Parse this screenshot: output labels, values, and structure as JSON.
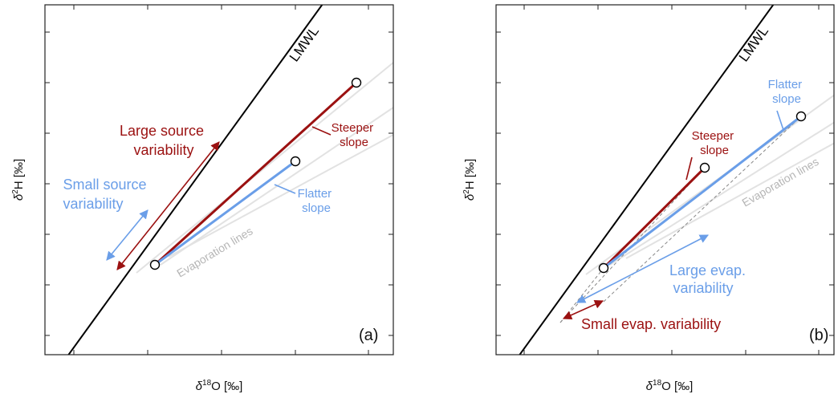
{
  "panel_a": {
    "tag": "(a)",
    "lmwl_label": "LMWL",
    "evap_label": "Evaporation lines",
    "steeper_label": [
      "Steeper",
      "slope"
    ],
    "flatter_label": [
      "Flatter",
      "slope"
    ],
    "large_source_label": [
      "Large source",
      "variability"
    ],
    "small_source_label": [
      "Small source",
      "variability"
    ]
  },
  "panel_b": {
    "tag": "(b)",
    "lmwl_label": "LMWL",
    "evap_label": "Evaporation lines",
    "steeper_label": [
      "Steeper",
      "slope"
    ],
    "flatter_label": [
      "Flatter",
      "slope"
    ],
    "large_evap_label": [
      "Large evap.",
      "variability"
    ],
    "small_evap_label": "Small evap. variability"
  },
  "axes": {
    "x_label_prefix": "δ",
    "x_label_sup": "18",
    "x_label_main": "O [‰]",
    "y_label_prefix": "δ",
    "y_label_sup": "2",
    "y_label_main": "H [‰]"
  },
  "colors": {
    "red": "#9b1111",
    "blue": "#6a9ee8",
    "evap_gray": "#e2e2e2",
    "lmwl": "#000000"
  }
}
